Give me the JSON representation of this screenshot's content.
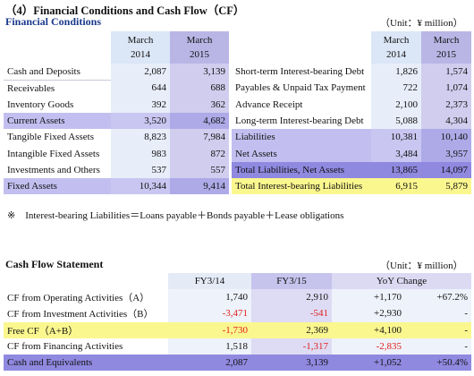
{
  "title": "（4）Financial Conditions and Cash Flow（CF）",
  "fin": {
    "heading": "Financial Conditions",
    "unit": "（Unit：¥ million）",
    "col1": "March\n2014",
    "col2": "March\n2015",
    "col1_l1": "March",
    "col1_l2": "2014",
    "col2_l1": "March",
    "col2_l2": "2015",
    "left_rows": [
      {
        "label": "Cash and Deposits",
        "v1": "2,087",
        "v2": "3,139"
      },
      {
        "label": "Receivables",
        "v1": "644",
        "v2": "688"
      },
      {
        "label": "Inventory Goods",
        "v1": "392",
        "v2": "362"
      },
      {
        "label": "Current Assets",
        "v1": "3,520",
        "v2": "4,682"
      },
      {
        "label": "Tangible Fixed Assets",
        "v1": "8,823",
        "v2": "7,984"
      },
      {
        "label": "Intangible Fixed Assets",
        "v1": "983",
        "v2": "872"
      },
      {
        "label": "Investments and Others",
        "v1": "537",
        "v2": "557"
      },
      {
        "label": "Fixed Assets",
        "v1": "10,344",
        "v2": "9,414"
      }
    ],
    "right_rows": [
      {
        "label": "Short-term Interest-bearing Debt",
        "v1": "1,826",
        "v2": "1,574"
      },
      {
        "label": "Payables & Unpaid Tax Payment",
        "v1": "722",
        "v2": "1,074"
      },
      {
        "label": "Advance Receipt",
        "v1": "2,100",
        "v2": "2,373"
      },
      {
        "label": "Long-term Interest-bearing Debt",
        "v1": "5,088",
        "v2": "4,304"
      },
      {
        "label": "Liabilities",
        "v1": "10,381",
        "v2": "10,140"
      },
      {
        "label": "Net Assets",
        "v1": "3,484",
        "v2": "3,957"
      },
      {
        "label": "Total Liabilities, Net Assets",
        "v1": "13,865",
        "v2": "14,097"
      },
      {
        "label": "Total Interest-bearing Liabilities",
        "v1": "6,915",
        "v2": "5,879"
      }
    ],
    "note": "※　Interest-bearing Liabilities＝Loans payable＋Bonds payable＋Lease obligations"
  },
  "cf": {
    "heading": "Cash Flow Statement",
    "unit": "（Unit：¥ million）",
    "h1": "FY3/14",
    "h2": "FY3/15",
    "h3": "YoY Change",
    "rows": [
      {
        "label": "CF from Operating Activities（A）",
        "v1": "1,740",
        "v2": "2,910",
        "chg": "+1,170",
        "pct": "+67.2%"
      },
      {
        "label": "CF from Investment Activities（B）",
        "v1": "-3,471",
        "v2": "-541",
        "chg": "+2,930",
        "pct": "-"
      },
      {
        "label": "Free CF（A+B）",
        "v1": "-1,730",
        "v2": "2,369",
        "chg": "+4,100",
        "pct": "-"
      },
      {
        "label": "CF from Financing Activities",
        "v1": "1,518",
        "v2": "-1,317",
        "chg": "-2,835",
        "pct": "-"
      },
      {
        "label": "Cash and Equivalents",
        "v1": "2,087",
        "v2": "3,139",
        "chg": "+1,052",
        "pct": "+50.4%"
      }
    ]
  }
}
